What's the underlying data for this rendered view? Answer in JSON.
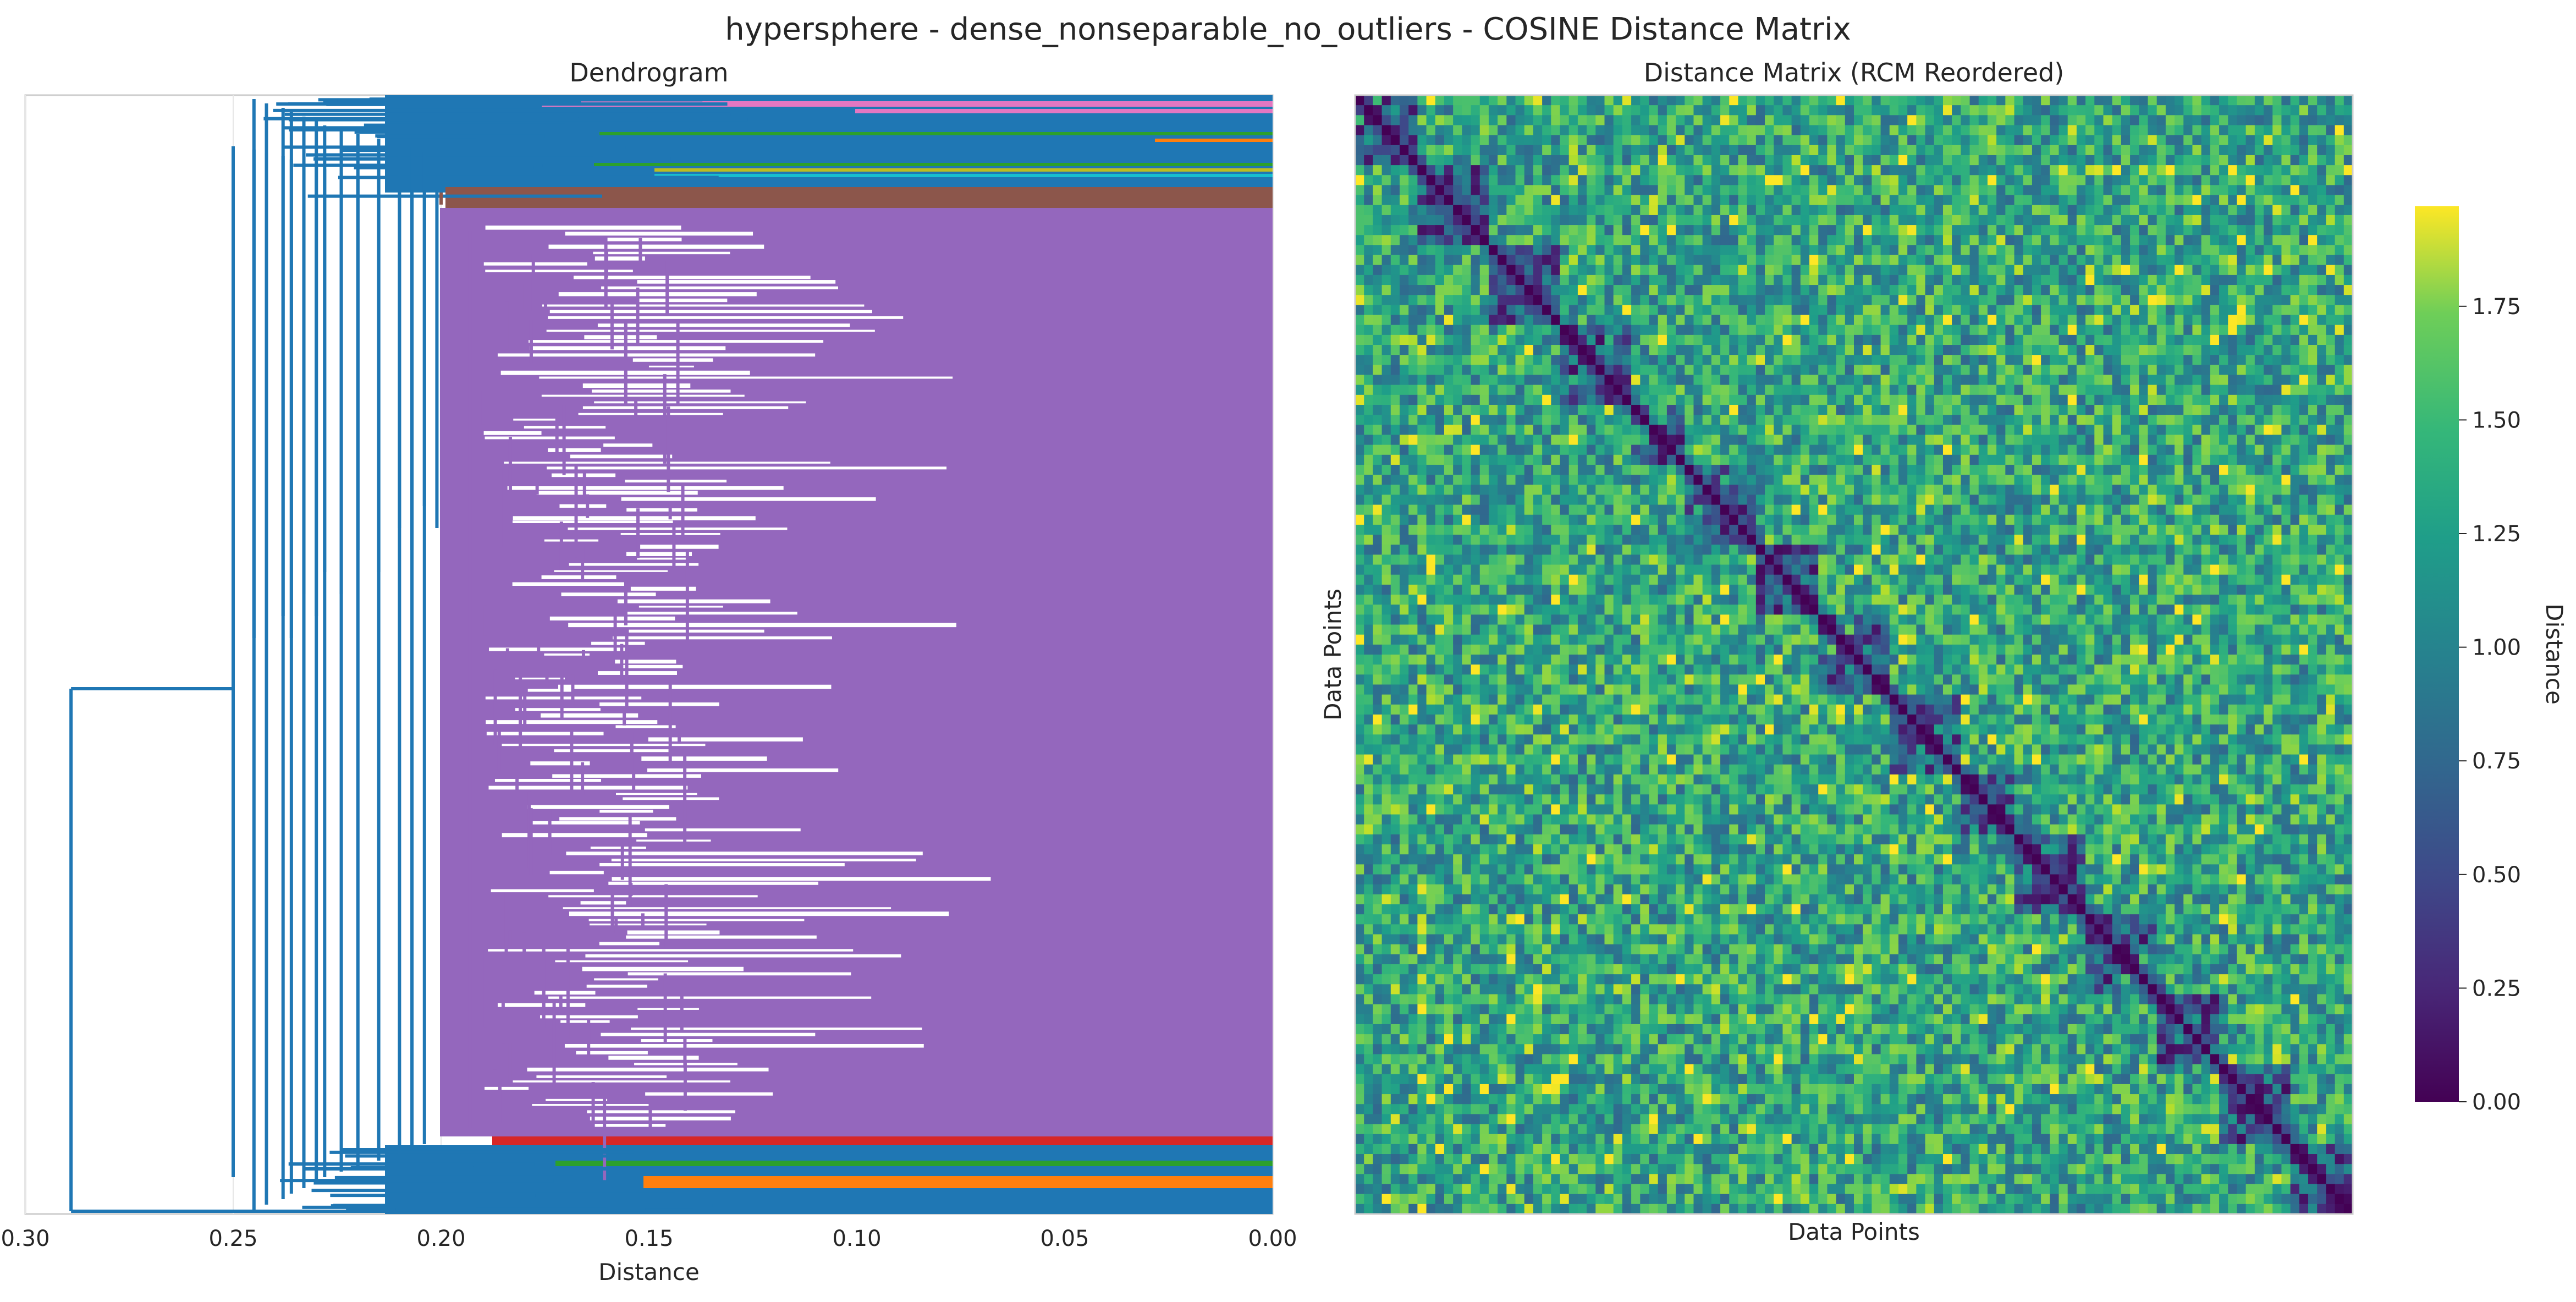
{
  "suptitle": "hypersphere - dense_nonseparable_no_outliers - COSINE Distance Matrix",
  "chart_data": [
    {
      "type": "dendrogram",
      "title": "Dendrogram",
      "xlabel": "Distance",
      "xlim": [
        0.3,
        0.0
      ],
      "x_ticks": [
        "0.30",
        "0.25",
        "0.20",
        "0.15",
        "0.10",
        "0.05",
        "0.00"
      ],
      "x_tick_values": [
        0.3,
        0.25,
        0.2,
        0.15,
        0.1,
        0.05,
        0.0
      ],
      "grid": true,
      "clusters": [
        {
          "color": "#d62728",
          "merge_height": 0.165
        },
        {
          "color": "#9467bd",
          "merge_height": 0.193,
          "is_dominant": true
        },
        {
          "color": "#8c564b",
          "merge_height": 0.2
        },
        {
          "color": "#2ca02c",
          "merge_height": 0.16
        },
        {
          "color": "#ff7f0e",
          "merge_height": 0.15
        },
        {
          "color": "#bcbd22",
          "merge_height": 0.15
        },
        {
          "color": "#e377c2",
          "merge_height": 0.1
        },
        {
          "color": "#17becf",
          "merge_height": 0.13
        }
      ],
      "above_threshold_color": "#1f77b4",
      "top_merges": [
        0.289,
        0.25,
        0.245,
        0.242,
        0.238,
        0.236,
        0.233,
        0.23,
        0.228,
        0.224,
        0.22,
        0.215,
        0.21,
        0.207,
        0.204,
        0.201
      ]
    },
    {
      "type": "heatmap",
      "title": "Distance Matrix (RCM Reordered)",
      "xlabel": "Data Points",
      "ylabel": "Data Points",
      "colormap": "viridis",
      "value_range": [
        0.0,
        1.97
      ],
      "diagonal_value": 0.0,
      "colorbar": {
        "label": "Distance",
        "ticks": [
          "0.00",
          "0.25",
          "0.50",
          "0.75",
          "1.00",
          "1.25",
          "1.50",
          "1.75"
        ],
        "tick_values": [
          0.0,
          0.25,
          0.5,
          0.75,
          1.0,
          1.25,
          1.5,
          1.75
        ]
      },
      "block_boundaries_fraction": [
        0.0,
        0.06,
        0.13,
        0.2,
        0.27,
        0.33,
        0.4,
        0.46,
        0.53,
        0.6,
        0.66,
        0.73,
        0.8,
        0.86,
        0.93,
        1.0
      ]
    }
  ],
  "colors": {
    "viridis_low": "#440154",
    "viridis_mid": "#21918c",
    "viridis_high": "#fde725"
  }
}
